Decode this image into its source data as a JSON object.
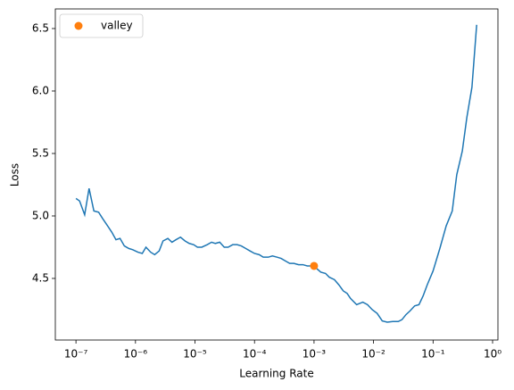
{
  "chart_data": {
    "type": "line",
    "xlabel": "Learning Rate",
    "ylabel": "Loss",
    "xscale": "log",
    "xlim": [
      4.5e-08,
      1.23
    ],
    "ylim": [
      4.007,
      6.657
    ],
    "xticks": [
      {
        "value": 1e-07,
        "label": "10⁻⁷"
      },
      {
        "value": 1e-06,
        "label": "10⁻⁶"
      },
      {
        "value": 1e-05,
        "label": "10⁻⁵"
      },
      {
        "value": 0.0001,
        "label": "10⁻⁴"
      },
      {
        "value": 0.001,
        "label": "10⁻³"
      },
      {
        "value": 0.01,
        "label": "10⁻²"
      },
      {
        "value": 0.1,
        "label": "10⁻¹"
      },
      {
        "value": 1,
        "label": "10⁰"
      }
    ],
    "yticks": [
      4.5,
      {
        "value": 5,
        "label": "5.0"
      },
      5.5,
      {
        "value": 6,
        "label": "6.0"
      },
      6.5
    ],
    "legend": "upper left",
    "series": [
      {
        "style": "line",
        "color": "#1f77b4",
        "x": [
          1e-07,
          1.15e-07,
          1.4e-07,
          1.66e-07,
          2e-07,
          2.4e-07,
          2.8e-07,
          3.3e-07,
          4e-07,
          4.7e-07,
          5.5e-07,
          6.5e-07,
          7.7e-07,
          9e-07,
          1.1e-06,
          1.3e-06,
          1.5e-06,
          1.8e-06,
          2.1e-06,
          2.5e-06,
          2.9e-06,
          3.5e-06,
          4.1e-06,
          4.8e-06,
          5.7e-06,
          6.8e-06,
          8e-06,
          9.5e-06,
          1.1e-05,
          1.3e-05,
          1.6e-05,
          1.9e-05,
          2.2e-05,
          2.6e-05,
          3.1e-05,
          3.6e-05,
          4.3e-05,
          5.1e-05,
          6e-05,
          7.1e-05,
          8.4e-05,
          0.0001,
          0.00012,
          0.00014,
          0.00017,
          0.0002,
          0.00024,
          0.00028,
          0.00033,
          0.00039,
          0.00046,
          0.00055,
          0.00065,
          0.00077,
          0.0009,
          0.0011,
          0.0013,
          0.00156,
          0.0018,
          0.0022,
          0.0026,
          0.0031,
          0.0036,
          0.0041,
          0.0052,
          0.0066,
          0.0079,
          0.0095,
          0.0115,
          0.014,
          0.017,
          0.021,
          0.026,
          0.03,
          0.035,
          0.041,
          0.049,
          0.058,
          0.068,
          0.08,
          0.1,
          0.13,
          0.166,
          0.21,
          0.25,
          0.31,
          0.37,
          0.45,
          0.54
        ],
        "values": [
          5.14,
          5.12,
          5.01,
          5.22,
          5.04,
          5.03,
          4.98,
          4.93,
          4.87,
          4.81,
          4.82,
          4.76,
          4.74,
          4.73,
          4.71,
          4.7,
          4.75,
          4.71,
          4.69,
          4.72,
          4.8,
          4.82,
          4.79,
          4.81,
          4.83,
          4.8,
          4.78,
          4.77,
          4.75,
          4.75,
          4.77,
          4.79,
          4.78,
          4.79,
          4.75,
          4.75,
          4.77,
          4.77,
          4.76,
          4.74,
          4.72,
          4.7,
          4.69,
          4.67,
          4.67,
          4.68,
          4.67,
          4.66,
          4.64,
          4.62,
          4.62,
          4.61,
          4.61,
          4.6,
          4.6,
          4.58,
          4.55,
          4.54,
          4.51,
          4.49,
          4.45,
          4.4,
          4.38,
          4.34,
          4.29,
          4.31,
          4.29,
          4.25,
          4.22,
          4.16,
          4.15,
          4.155,
          4.155,
          4.17,
          4.21,
          4.24,
          4.28,
          4.29,
          4.36,
          4.45,
          4.56,
          4.74,
          4.92,
          5.04,
          5.33,
          5.52,
          5.79,
          6.03,
          6.53
        ]
      },
      {
        "style": "marker",
        "name": "valley",
        "color": "#ff7f0e",
        "x": [
          0.001
        ],
        "values": [
          4.6
        ]
      }
    ]
  }
}
